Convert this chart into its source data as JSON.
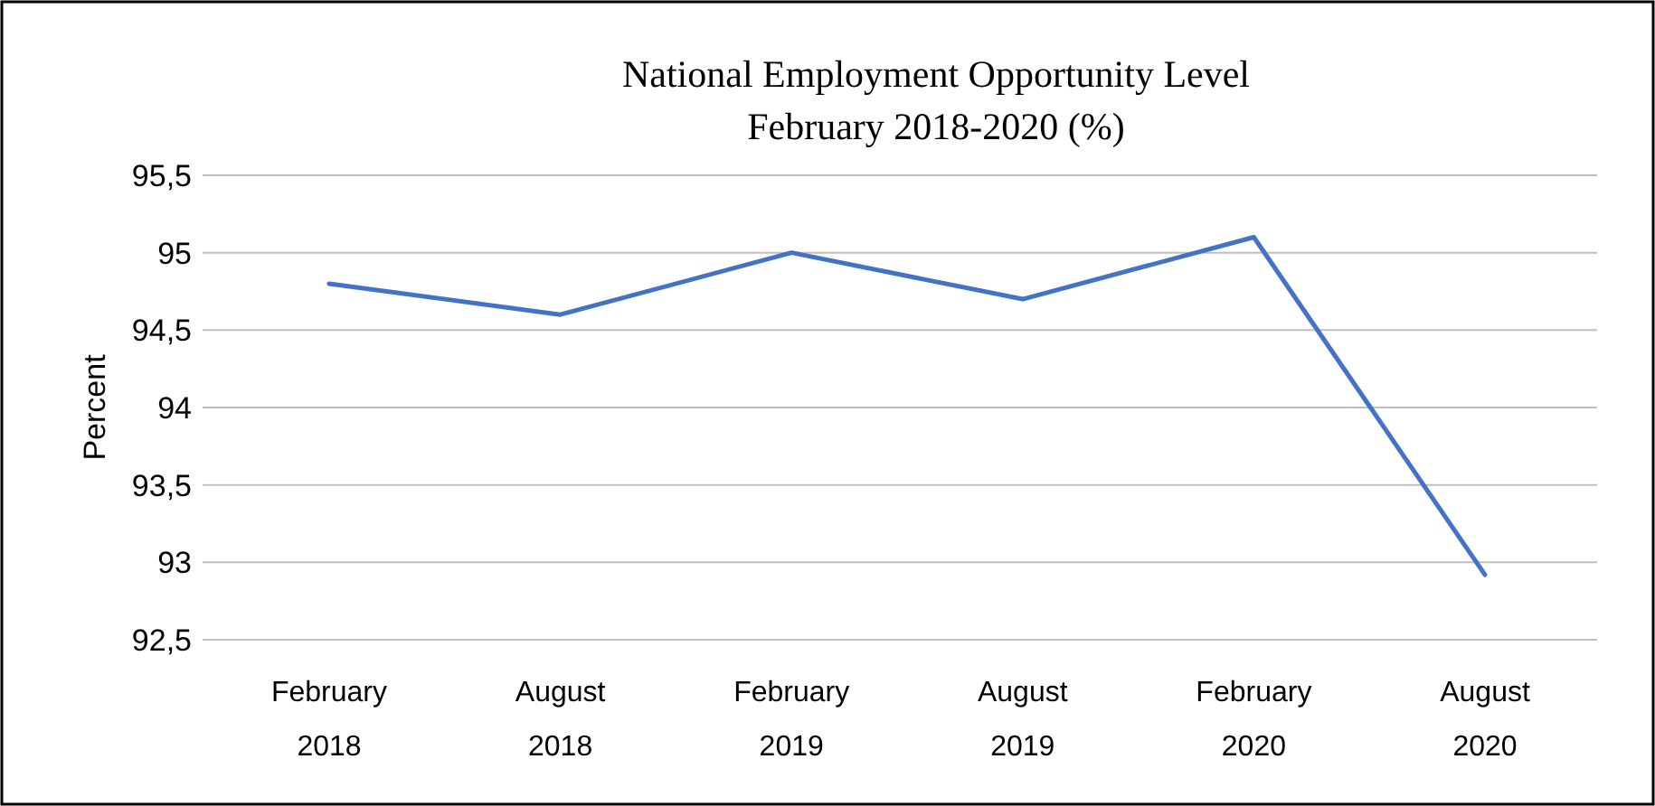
{
  "chart_data": {
    "type": "line",
    "title": "National Employment Opportunity Level",
    "subtitle": "February 2018-2020 (%)",
    "ylabel": "Percent",
    "categories": [
      "February 2018",
      "August 2018",
      "February 2019",
      "August 2019",
      "February 2020",
      "August 2020"
    ],
    "series": [
      {
        "color": "#4472c4",
        "values": [
          94.8,
          94.6,
          95.0,
          94.7,
          95.1,
          92.92
        ]
      }
    ],
    "ylim": [
      92.5,
      95.5
    ],
    "yticks": [
      {
        "value": 92.5,
        "label": "92,5"
      },
      93,
      {
        "value": 93.5,
        "label": "93,5"
      },
      94,
      {
        "value": 94.5,
        "label": "94,5"
      },
      95,
      {
        "value": 95.5,
        "label": "95,5"
      }
    ],
    "grid": "y",
    "marker": "none",
    "line_style": "solid"
  }
}
